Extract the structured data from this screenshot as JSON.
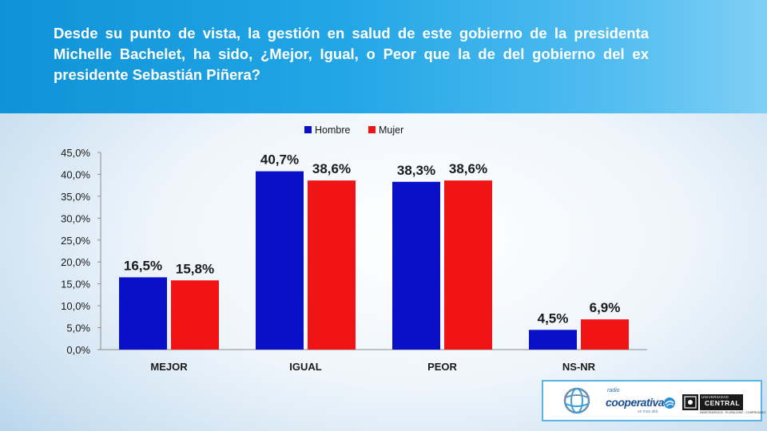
{
  "header": {
    "question": "Desde su punto de vista, la gestión en salud de este gobierno de la presidenta Michelle Bachelet, ha sido, ¿Mejor, Igual, o Peor que la de del gobierno del ex presidente Sebastián Piñera?"
  },
  "chart_data": {
    "type": "bar",
    "title": "",
    "xlabel": "",
    "ylabel": "",
    "categories": [
      "MEJOR",
      "IGUAL",
      "PEOR",
      "NS-NR"
    ],
    "series": [
      {
        "name": "Hombre",
        "color": "#0a0fc8",
        "values": [
          16.5,
          40.7,
          38.3,
          4.5
        ],
        "labels": [
          "16,5%",
          "40,7%",
          "38,3%",
          "4,5%"
        ]
      },
      {
        "name": "Mujer",
        "color": "#f01414",
        "values": [
          15.8,
          38.6,
          38.6,
          6.9
        ],
        "labels": [
          "15,8%",
          "38,6%",
          "38,6%",
          "6,9%"
        ]
      }
    ],
    "ylim": [
      0,
      45
    ],
    "yticks": [
      0,
      5,
      10,
      15,
      20,
      25,
      30,
      35,
      40,
      45
    ],
    "ytick_labels": [
      "0,0%",
      "5,0%",
      "10,0%",
      "15,0%",
      "20,0%",
      "25,0%",
      "30,0%",
      "35,0%",
      "40,0%",
      "45,0%"
    ],
    "grid": false,
    "legend": "top-center"
  },
  "logos": {
    "radio_label": "radio",
    "cooperativa_name": "cooperativa",
    "cooperativa_tagline": "se más allá",
    "uc_small": "UNIVERSIDAD",
    "uc_big": "CENTRAL",
    "uc_foot": "INDEPENDENCIA · PLURALISMO · COMPROMISO"
  }
}
